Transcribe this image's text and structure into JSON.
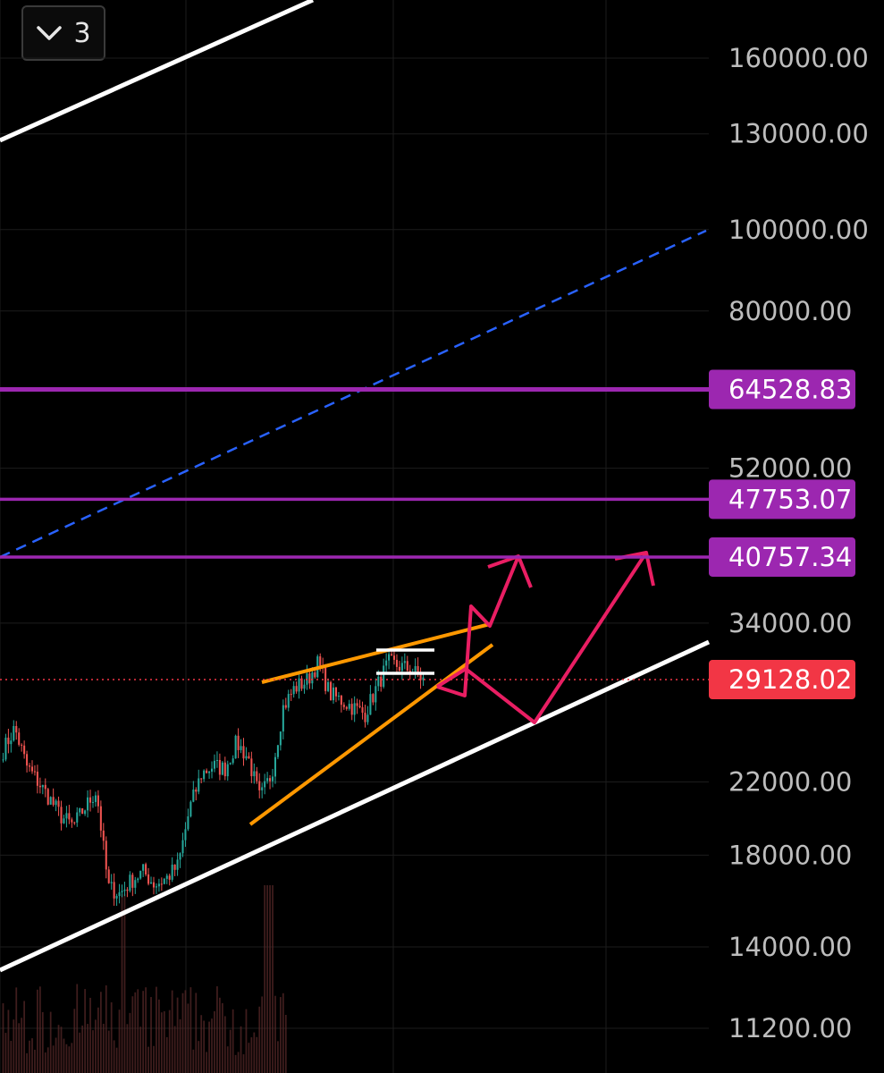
{
  "header": {
    "collapse_count": "3"
  },
  "colors": {
    "background": "#000000",
    "grid": "#1c1c1c",
    "level_line": "#9c27b0",
    "level_badge": "#9c27b0",
    "current_badge": "#f23645",
    "channel_line": "#ffffff",
    "wedge_line": "#ff9800",
    "projection_arrow": "#e91e63",
    "median_dashed": "#2962ff",
    "candle_up": "#26a69a",
    "candle_down": "#ef5350"
  },
  "chart_data": {
    "type": "candlestick",
    "y_scale": "log",
    "y_axis_ticks": [
      "160000.00",
      "130000.00",
      "100000.00",
      "80000.00",
      "52000.00",
      "34000.00",
      "22000.00",
      "18000.00",
      "14000.00",
      "11200.00"
    ],
    "level_badges": [
      {
        "label": "64528.83",
        "value": 64528.83
      },
      {
        "label": "47753.07",
        "value": 47753.07
      },
      {
        "label": "40757.34",
        "value": 40757.34
      }
    ],
    "current_price": {
      "label": "29128.02",
      "value": 29128.02
    },
    "series": [
      {
        "name": "",
        "type": "close",
        "values": [
          24000,
          25500,
          23000,
          22000,
          21000,
          20000,
          19500,
          20500,
          21500,
          16500,
          16200,
          16800,
          17200,
          16600,
          16900,
          17500,
          20500,
          22500,
          23000,
          22800,
          24500,
          23500,
          21000,
          22500,
          27000,
          28500,
          29000,
          30500,
          28000,
          27500,
          27000,
          26500,
          28500,
          30500,
          30200,
          29900,
          29128
        ]
      }
    ],
    "grid": true,
    "legend": "none"
  }
}
